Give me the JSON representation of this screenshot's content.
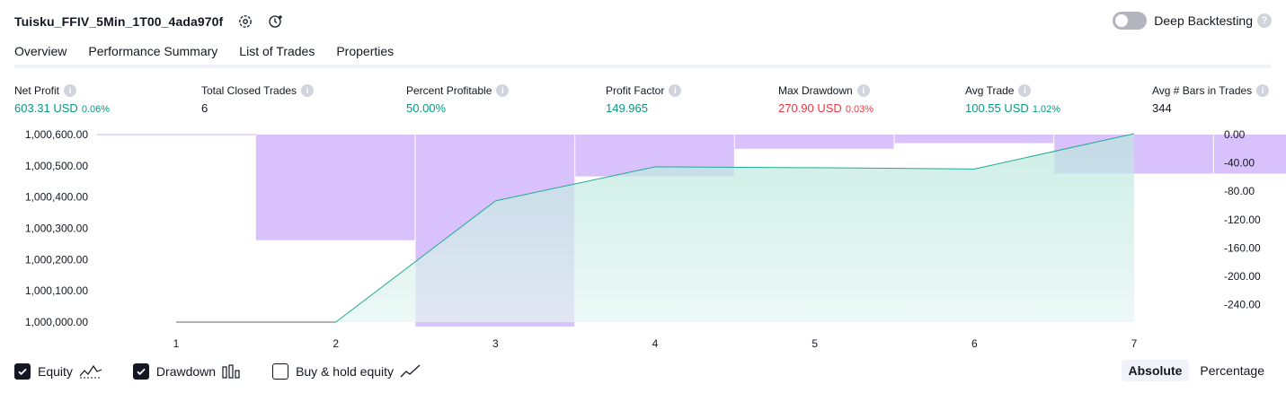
{
  "header": {
    "strategy_name": "Tuisku_FFIV_5Min_1T00_4ada970f",
    "deep_backtesting_label": "Deep Backtesting",
    "deep_backtesting_enabled": false
  },
  "tabs": [
    {
      "label": "Overview",
      "active": true
    },
    {
      "label": "Performance Summary",
      "active": false
    },
    {
      "label": "List of Trades",
      "active": false
    },
    {
      "label": "Properties",
      "active": false
    }
  ],
  "metrics": {
    "net_profit": {
      "label": "Net Profit",
      "value": "603.31 USD",
      "pct": "0.06%"
    },
    "total_closed_trades": {
      "label": "Total Closed Trades",
      "value": "6"
    },
    "percent_profitable": {
      "label": "Percent Profitable",
      "value": "50.00%"
    },
    "profit_factor": {
      "label": "Profit Factor",
      "value": "149.965"
    },
    "max_drawdown": {
      "label": "Max Drawdown",
      "value": "270.90 USD",
      "pct": "0.03%"
    },
    "avg_trade": {
      "label": "Avg Trade",
      "value": "100.55 USD",
      "pct": "1.02%"
    },
    "avg_bars": {
      "label": "Avg # Bars in Trades",
      "value": "344"
    }
  },
  "chart_data": {
    "type": "area",
    "x": [
      1,
      2,
      3,
      4,
      5,
      6,
      7
    ],
    "left_axis": {
      "ticks": [
        "1,000,600.00",
        "1,000,500.00",
        "1,000,400.00",
        "1,000,300.00",
        "1,000,200.00",
        "1,000,100.00",
        "1,000,000.00"
      ],
      "tick_values": [
        1000600,
        1000500,
        1000400,
        1000300,
        1000200,
        1000100,
        1000000
      ],
      "ylim": [
        1000000,
        1000600
      ]
    },
    "right_axis": {
      "ticks": [
        "0.00",
        "-40.00",
        "-80.00",
        "-120.00",
        "-160.00",
        "-200.00",
        "-240.00"
      ],
      "tick_values": [
        0,
        -40,
        -80,
        -120,
        -160,
        -200,
        -240
      ],
      "ylim": [
        -264.6,
        0
      ]
    },
    "series": [
      {
        "name": "Equity",
        "values": [
          1000000,
          1000000,
          1000388,
          1000497,
          1000494,
          1000490,
          1000603
        ]
      },
      {
        "name": "Drawdown",
        "x": [
          1.5,
          2.5,
          3.5,
          4.5,
          5.5,
          6.5,
          7.5
        ],
        "values": [
          -149,
          -270.9,
          -59,
          -20,
          -12,
          -55,
          -55
        ]
      }
    ],
    "colors": {
      "equity_line": "#22ab94",
      "equity_fill": "#b9e6dc",
      "drawdown": "#d1b3fa",
      "baseline": "#d1b3fa"
    }
  },
  "footer": {
    "checkboxes": [
      {
        "label": "Equity",
        "checked": true,
        "icon": "equity-icon"
      },
      {
        "label": "Drawdown",
        "checked": true,
        "icon": "drawdown-icon"
      },
      {
        "label": "Buy & hold equity",
        "checked": false,
        "icon": "buy-hold-icon"
      }
    ],
    "view_modes": [
      {
        "label": "Absolute",
        "active": true
      },
      {
        "label": "Percentage",
        "active": false
      }
    ]
  }
}
